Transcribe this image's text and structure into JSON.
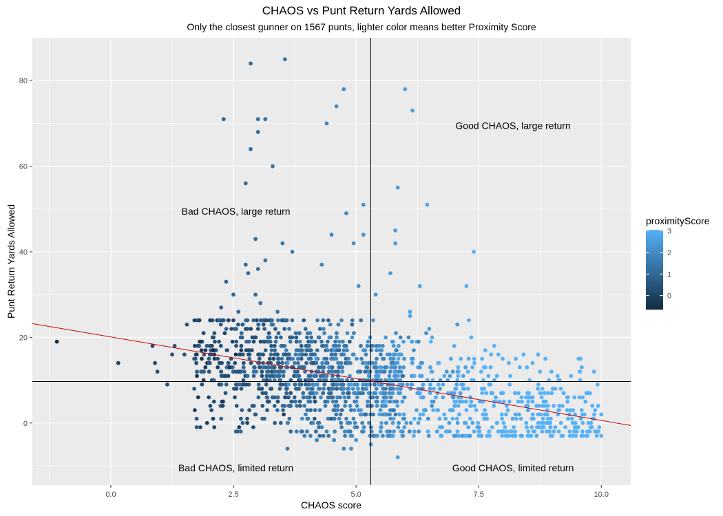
{
  "chart_data": {
    "type": "scatter",
    "title": "CHAOS vs Punt Return Yards Allowed",
    "subtitle": "Only the closest gunner on 1567 punts, lighter color means better Proximity Score",
    "xlabel": "CHAOS score",
    "ylabel": "Punt Return Yards Allowed",
    "xlim": [
      -1.6,
      10.6
    ],
    "ylim": [
      -14.5,
      90
    ],
    "x_ticks": [
      "0.0",
      "2.5",
      "5.0",
      "7.5",
      "10.0"
    ],
    "y_ticks": [
      "0",
      "20",
      "40",
      "60",
      "80"
    ],
    "grid": true,
    "colors": {
      "low": "#132B43",
      "high": "#56B1F7",
      "panel": "#EBEBEB",
      "fit_line": "#CC0000",
      "ref_line": "#000000"
    },
    "legend": {
      "title": "proximityScore",
      "placement": "right",
      "min": -0.65,
      "max": 3.05,
      "ticks": [
        "0",
        "1",
        "2",
        "3"
      ]
    },
    "reference_lines": {
      "vertical_x": 5.3,
      "horizontal_y": 9.7
    },
    "trend_line": {
      "intercept": 20.1,
      "slope": -1.95
    },
    "annotations": [
      {
        "text": "Good CHAOS, large return",
        "x": 8.2,
        "y": 69.5
      },
      {
        "text": "Bad CHAOS, large return",
        "x": 2.55,
        "y": 49.5
      },
      {
        "text": "Bad CHAOS, limited return",
        "x": 2.55,
        "y": -10.5
      },
      {
        "text": "Good CHAOS, limited return",
        "x": 8.2,
        "y": -10.5
      }
    ],
    "highlight_points": [
      [
        -1.1,
        19,
        -0.5
      ],
      [
        0.15,
        14,
        0.1
      ],
      [
        0.85,
        18,
        0.2
      ],
      [
        0.9,
        14,
        0.2
      ],
      [
        0.95,
        12,
        0.3
      ],
      [
        1.15,
        9,
        0.35
      ],
      [
        1.3,
        18,
        0.5
      ],
      [
        1.25,
        16,
        0.4
      ],
      [
        1.5,
        16,
        0.5
      ],
      [
        1.55,
        23,
        0.55
      ],
      [
        1.7,
        15,
        0.6
      ],
      [
        1.75,
        1,
        0.6
      ],
      [
        1.75,
        -1,
        0.6
      ],
      [
        1.8,
        18,
        0.65
      ],
      [
        1.9,
        16,
        0.7
      ],
      [
        1.7,
        8,
        0.6
      ],
      [
        2.0,
        14,
        0.75
      ],
      [
        2.1,
        10,
        0.8
      ],
      [
        2.2,
        24,
        0.85
      ],
      [
        2.25,
        27,
        0.9
      ],
      [
        2.3,
        71,
        0.9
      ],
      [
        2.35,
        33,
        0.95
      ],
      [
        2.25,
        1,
        0.9
      ],
      [
        2.5,
        30,
        1.0
      ],
      [
        2.55,
        -2,
        1.0
      ],
      [
        2.65,
        -2,
        1.05
      ],
      [
        2.6,
        26,
        1.05
      ],
      [
        2.75,
        56,
        1.1
      ],
      [
        2.85,
        64,
        1.15
      ],
      [
        2.85,
        84,
        1.15
      ],
      [
        2.95,
        43,
        1.2
      ],
      [
        3.0,
        68,
        1.2
      ],
      [
        3.0,
        71,
        1.2
      ],
      [
        3.15,
        71,
        1.3
      ],
      [
        3.3,
        60,
        1.35
      ],
      [
        3.5,
        42,
        1.45
      ],
      [
        3.55,
        85,
        1.45
      ],
      [
        3.7,
        40,
        1.5
      ],
      [
        2.75,
        37,
        1.1
      ],
      [
        2.8,
        35,
        1.1
      ],
      [
        3.0,
        36,
        1.2
      ],
      [
        3.15,
        38,
        1.3
      ],
      [
        3.4,
        26,
        1.4
      ],
      [
        2.95,
        30,
        1.2
      ],
      [
        3.05,
        28,
        1.25
      ],
      [
        3.6,
        -6,
        1.5
      ],
      [
        3.95,
        -3,
        1.6
      ],
      [
        4.0,
        -2,
        1.65
      ],
      [
        4.2,
        -4,
        1.75
      ],
      [
        4.3,
        37,
        1.8
      ],
      [
        4.3,
        -1,
        1.8
      ],
      [
        4.4,
        -2,
        1.85
      ],
      [
        4.4,
        70,
        1.85
      ],
      [
        4.5,
        44,
        1.9
      ],
      [
        4.55,
        -4,
        1.9
      ],
      [
        4.6,
        74,
        1.95
      ],
      [
        4.75,
        78,
        2.0
      ],
      [
        4.8,
        49,
        2.05
      ],
      [
        4.9,
        -6,
        2.1
      ],
      [
        4.75,
        -6,
        2.0
      ],
      [
        4.95,
        42,
        2.1
      ],
      [
        5.0,
        -4,
        2.15
      ],
      [
        5.15,
        51,
        2.2
      ],
      [
        5.15,
        44,
        2.2
      ],
      [
        5.05,
        32,
        2.15
      ],
      [
        5.3,
        -5,
        2.3
      ],
      [
        5.4,
        30,
        2.3
      ],
      [
        5.5,
        -2,
        2.4
      ],
      [
        5.75,
        -3,
        2.5
      ],
      [
        5.8,
        42,
        2.5
      ],
      [
        5.85,
        55,
        2.55
      ],
      [
        5.85,
        -8,
        2.55
      ],
      [
        5.8,
        45,
        2.5
      ],
      [
        6.0,
        78,
        2.6
      ],
      [
        6.15,
        73,
        2.65
      ],
      [
        6.1,
        26,
        2.65
      ],
      [
        6.1,
        25,
        2.65
      ],
      [
        6.3,
        32,
        2.7
      ],
      [
        6.45,
        51,
        2.75
      ],
      [
        6.85,
        -2,
        2.9
      ],
      [
        7.1,
        -3,
        2.95
      ],
      [
        7.25,
        32,
        3.0
      ],
      [
        7.3,
        24,
        3.0
      ],
      [
        7.4,
        40,
        3.05
      ],
      [
        7.5,
        -3,
        3.05
      ],
      [
        7.9,
        -2,
        3.05
      ],
      [
        8.0,
        -2,
        3.05
      ],
      [
        8.75,
        12,
        3.05
      ],
      [
        9.15,
        10,
        3.05
      ],
      [
        9.45,
        6,
        3.05
      ],
      [
        9.75,
        -2,
        3.05
      ],
      [
        10.0,
        2,
        3.05
      ],
      [
        10.0,
        -3,
        3.05
      ],
      [
        5.7,
        35,
        2.5
      ],
      [
        6.55,
        12,
        2.8
      ],
      [
        6.55,
        20,
        2.8
      ],
      [
        7.0,
        18,
        2.9
      ],
      [
        7.35,
        20,
        3.0
      ],
      [
        7.9,
        16,
        3.05
      ],
      [
        7.55,
        12,
        3.05
      ],
      [
        5.15,
        17,
        2.2
      ]
    ],
    "cloud": {
      "n": 1470,
      "seed": 7,
      "x_range": [
        1.7,
        10.0
      ],
      "y_center_intercept": 18.5,
      "y_center_slope": -1.8,
      "y_spread": 6.5
    }
  }
}
